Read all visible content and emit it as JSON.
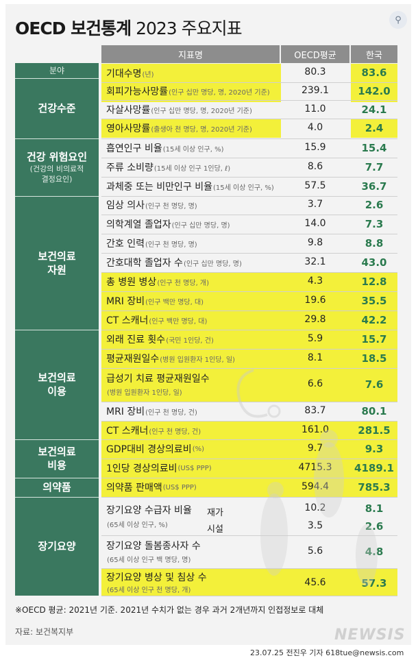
{
  "title": {
    "bold": "OECD 보건통계",
    "rest": "2023 주요지표"
  },
  "header": {
    "indicator": "지표명",
    "oecd": "OECD평균",
    "korea": "한국"
  },
  "first_cat_label": "분야",
  "categories": [
    {
      "main": "건강수준",
      "sub": ""
    },
    {
      "main": "건강 위험요인",
      "sub": "(건강의 비의료적 결정요인)"
    },
    {
      "main": "보건의료 자원",
      "sub": ""
    },
    {
      "main": "보건의료 이용",
      "sub": ""
    },
    {
      "main": "보건의료 비용",
      "sub": ""
    },
    {
      "main": "의약품",
      "sub": ""
    },
    {
      "main": "장기요양",
      "sub": ""
    }
  ],
  "rows": [
    {
      "name": "기대수명",
      "note": "(년)",
      "oecd": "80.3",
      "korea": "83.6"
    },
    {
      "name": "회피가능사망률",
      "note": "(인구 십만 명당, 명, 2020년 기준)",
      "oecd": "239.1",
      "korea": "142.0"
    },
    {
      "name": "자살사망률",
      "note": "(인구 십만 명당, 명, 2020년 기준)",
      "oecd": "11.0",
      "korea": "24.1"
    },
    {
      "name": "영아사망률",
      "note": "(출생아 천 명당, 명, 2020년 기준)",
      "oecd": "4.0",
      "korea": "2.4"
    },
    {
      "name": "흡연인구 비율",
      "note": "(15세 이상 인구, %)",
      "oecd": "15.9",
      "korea": "15.4"
    },
    {
      "name": "주류 소비량",
      "note": "(15세 이상 인구 1인당, ℓ)",
      "oecd": "8.6",
      "korea": "7.7"
    },
    {
      "name": "과체중 또는 비만인구 비율",
      "note": "(15세 이상 인구, %)",
      "oecd": "57.5",
      "korea": "36.7"
    },
    {
      "name": "임상 의사",
      "note": "(인구 천 명당, 명)",
      "oecd": "3.7",
      "korea": "2.6"
    },
    {
      "name": "의학계열 졸업자",
      "note": "(인구 십만 명당, 명)",
      "oecd": "14.0",
      "korea": "7.3"
    },
    {
      "name": "간호 인력",
      "note": "(인구 천 명당, 명)",
      "oecd": "9.8",
      "korea": "8.8"
    },
    {
      "name": "간호대학 졸업자 수",
      "note": "(인구 십만 명당, 명)",
      "oecd": "32.1",
      "korea": "43.0"
    },
    {
      "name": "총 병원 병상",
      "note": "(인구 천 명당, 개)",
      "oecd": "4.3",
      "korea": "12.8"
    },
    {
      "name": "MRI 장비",
      "note": "(인구 백만 명당, 대)",
      "oecd": "19.6",
      "korea": "35.5"
    },
    {
      "name": "CT 스캐너",
      "note": "(인구 백만 명당, 대)",
      "oecd": "29.8",
      "korea": "42.2"
    },
    {
      "name": "외래 진료 횟수",
      "note": "(국민 1인당, 건)",
      "oecd": "5.9",
      "korea": "15.7"
    },
    {
      "name": "평균재원일수",
      "note": "(병원 입원환자 1인당, 일)",
      "oecd": "8.1",
      "korea": "18.5"
    },
    {
      "name": "급성기 치료 평균재원일수",
      "note": "(병원 입원환자 1인당, 일)",
      "oecd": "6.6",
      "korea": "7.6"
    },
    {
      "name": "MRI 장비",
      "note": "(인구 천 명당, 건)",
      "oecd": "83.7",
      "korea": "80.1"
    },
    {
      "name": "CT 스캐너",
      "note": "(인구 천 명당, 건)",
      "oecd": "161.0",
      "korea": "281.5"
    },
    {
      "name": "GDP대비 경상의료비",
      "note": "(%)",
      "oecd": "9.7",
      "korea": "9.3"
    },
    {
      "name": "1인당 경상의료비",
      "note": "(US$ PPP)",
      "oecd": "4715.3",
      "korea": "4189.1"
    },
    {
      "name": "의약품 판매액",
      "note": "(US$ PPP)",
      "oecd": "594.4",
      "korea": "785.3"
    },
    {
      "name": "장기요양 수급자 비율",
      "note": "(65세 이상 인구, %)",
      "sub1": "재가",
      "oecd": "10.2",
      "korea": "8.1",
      "sub2": "시설",
      "oecd2": "3.5",
      "korea2": "2.6"
    },
    {
      "name": "장기요양 돌봄종사자 수",
      "note": "(65세 이상 인구 백 명당, 명)",
      "oecd": "5.6",
      "korea": "4.8"
    },
    {
      "name": "장기요양 병상 및 침상 수",
      "note": "(65세 이상 인구 천 명당, 개)",
      "oecd": "45.6",
      "korea": "57.3"
    }
  ],
  "footnote": "※OECD 평균: 2021년 기준. 2021년 수치가 없는 경우 과거 2개년까지 인접정보로 대체",
  "source": "자료: 보건복지부",
  "logo": "NEWSIS",
  "credit": "23.07.25 전진우 기자 618tue@newsis.com",
  "colors": {
    "green": "#3a785f",
    "korea_text": "#2a7a4e",
    "highlight": "#f3f03a",
    "header_gray": "#8d8d8d"
  }
}
